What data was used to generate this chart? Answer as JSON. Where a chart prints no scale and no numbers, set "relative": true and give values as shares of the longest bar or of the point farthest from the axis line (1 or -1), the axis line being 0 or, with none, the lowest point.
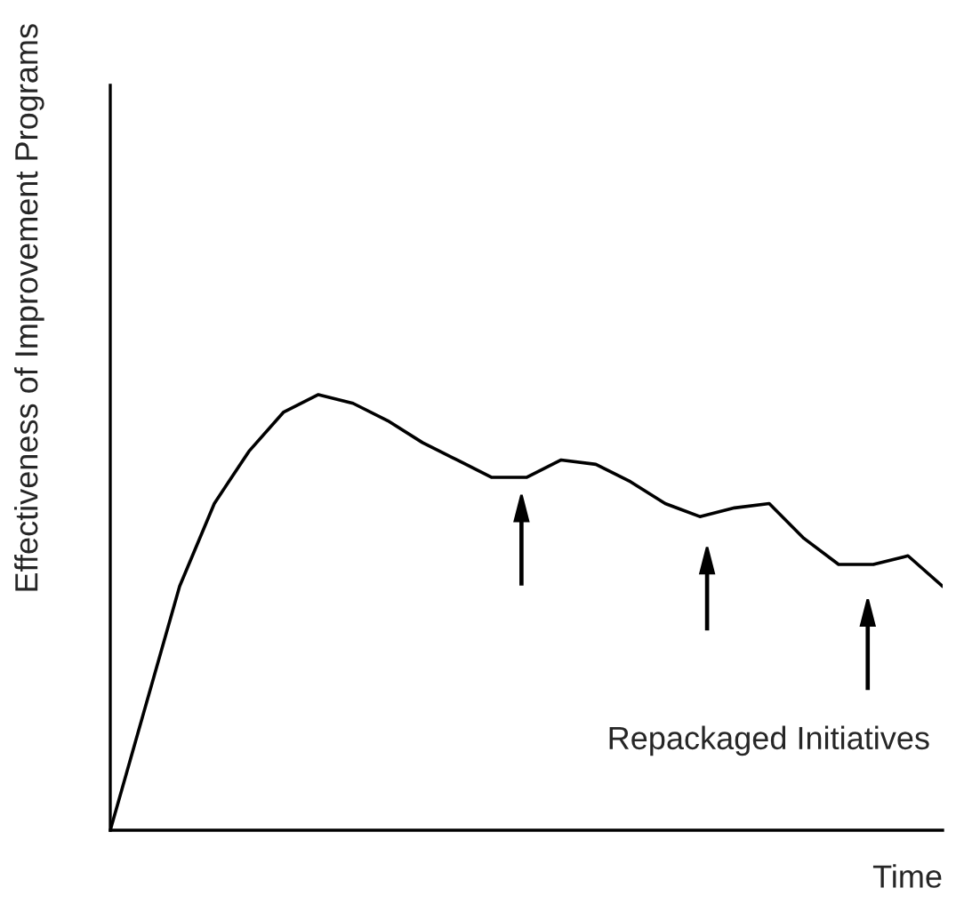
{
  "chart_data": {
    "type": "line",
    "relative": true,
    "xlabel": "Time",
    "ylabel": "Effectiveness of Improvement Programs",
    "categories": [
      null,
      null,
      null,
      null,
      null,
      null,
      null,
      null,
      null,
      null,
      null,
      null,
      null,
      null,
      null,
      null,
      null,
      null,
      null,
      null,
      null,
      null,
      null,
      null,
      null
    ],
    "series": [
      {
        "color": "#000000",
        "values": [
          0,
          0.28,
          0.56,
          0.75,
          0.87,
          0.96,
          1,
          0.98,
          0.94,
          0.89,
          0.85,
          0.81,
          0.81,
          0.85,
          0.84,
          0.8,
          0.75,
          0.72,
          0.74,
          0.75,
          0.67,
          0.61,
          0.61,
          0.63,
          0.56
        ]
      }
    ],
    "annotations": [
      "Repackaged Initiatives"
    ],
    "marker": "none",
    "line_style": "solid",
    "grid": false,
    "legend": false
  }
}
